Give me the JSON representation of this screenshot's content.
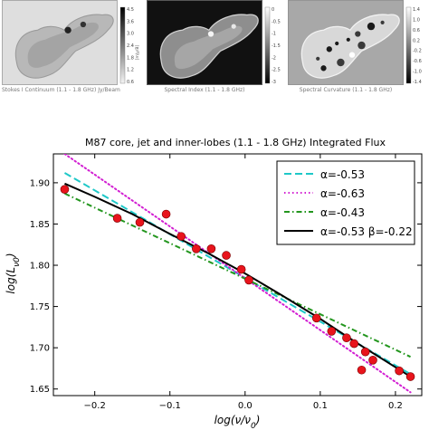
{
  "panels": [
    {
      "title": "Stokes I Continuum (1.1 - 1.8 GHz) Jy/Beam",
      "cmap": "grey",
      "colorbar_ticks": [
        "4.5",
        "3.6",
        "3.0",
        "2.4",
        "1.8",
        "1.2",
        "0.6"
      ],
      "colorbar_unit": "[mJy/B]"
    },
    {
      "title": "Spectral Index (1.1 - 1.8 GHz)",
      "cmap": "dark",
      "colorbar_ticks": [
        "0",
        "-0.5",
        "-1",
        "-1.5",
        "-2",
        "-2.5",
        "-3"
      ]
    },
    {
      "title": "Spectral Curvature (1.1 - 1.8 GHz)",
      "cmap": "light",
      "colorbar_ticks": [
        "1.4",
        "1.0",
        "0.6",
        "0.2",
        "-0.2",
        "-0.6",
        "-1.0",
        "-1.4"
      ]
    }
  ],
  "chart_data": {
    "type": "line",
    "title": "M87 core, jet and inner-lobes (1.1 - 1.8 GHz) Integrated Flux",
    "xlabel": "log(ν/ν0)",
    "ylabel": "log(Lν0)",
    "xlim": [
      -0.255,
      0.235
    ],
    "ylim": [
      1.642,
      1.935
    ],
    "xticks": [
      -0.2,
      -0.1,
      0.0,
      0.1,
      0.2
    ],
    "xtick_labels": [
      "−0.2",
      "−0.1",
      "0.0",
      "0.1",
      "0.2"
    ],
    "yticks": [
      1.65,
      1.7,
      1.75,
      1.8,
      1.85,
      1.9
    ],
    "ytick_labels": [
      "1.65",
      "1.70",
      "1.75",
      "1.80",
      "1.85",
      "1.90"
    ],
    "grid": false,
    "legend_position": "top-right",
    "points": {
      "color": "#e8141c",
      "x": [
        -0.24,
        -0.17,
        -0.14,
        -0.105,
        -0.085,
        -0.065,
        -0.045,
        -0.025,
        -0.005,
        0.005,
        0.095,
        0.115,
        0.135,
        0.145,
        0.155,
        0.16,
        0.17,
        0.205,
        0.22
      ],
      "y": [
        1.892,
        1.857,
        1.852,
        1.862,
        1.835,
        1.82,
        1.82,
        1.812,
        1.795,
        1.782,
        1.736,
        1.72,
        1.712,
        1.705,
        1.673,
        1.695,
        1.685,
        1.672,
        1.665
      ]
    },
    "series": [
      {
        "name": "α=-0.53",
        "style": "dashed",
        "color": "#1ec8c8",
        "x": [
          -0.24,
          0.22
        ],
        "y": [
          1.912,
          1.668
        ]
      },
      {
        "name": "α=-0.63",
        "style": "dotted",
        "color": "#d21ed2",
        "x": [
          -0.24,
          0.22
        ],
        "y": [
          1.935,
          1.646
        ]
      },
      {
        "name": "α=-0.43",
        "style": "dashdot",
        "color": "#23961e",
        "x": [
          -0.24,
          0.22
        ],
        "y": [
          1.887,
          1.689
        ]
      },
      {
        "name": "α=-0.53 β=-0.22",
        "style": "solid",
        "color": "#000000",
        "x": [
          -0.24,
          -0.2,
          -0.15,
          -0.1,
          -0.05,
          0.0,
          0.05,
          0.1,
          0.15,
          0.22
        ],
        "y": [
          1.899,
          1.883,
          1.862,
          1.838,
          1.815,
          1.79,
          1.763,
          1.735,
          1.705,
          1.665
        ]
      }
    ]
  }
}
